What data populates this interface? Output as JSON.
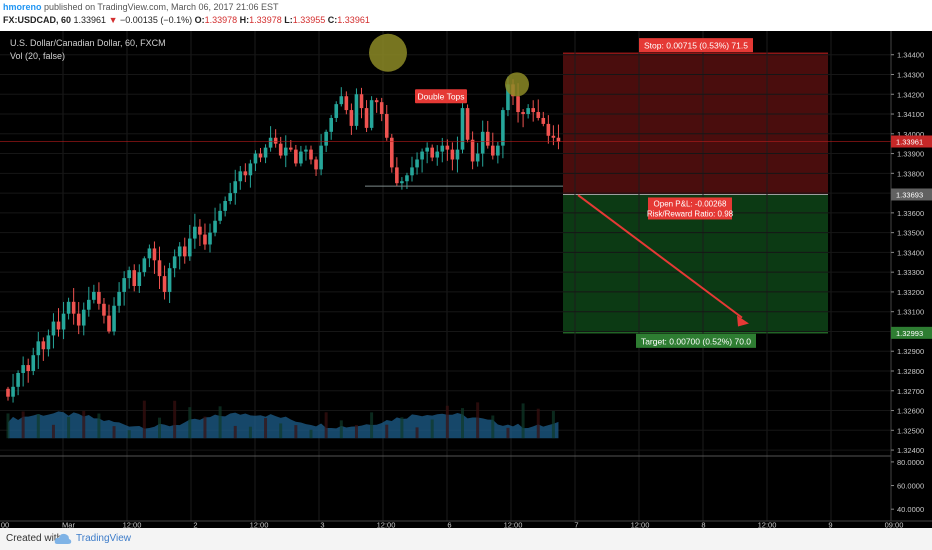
{
  "header": {
    "publisher": "hmoreno",
    "published_text": "published on TradingView.com, March 06, 2017 21:06 EST",
    "symbol": "FX:USDCAD, 60",
    "last": "1.33961",
    "change": "−0.00135 (−0.1%)",
    "o_label": "O:",
    "o_value": "1.33978",
    "h_label": "H:",
    "h_value": "1.33978",
    "l_label": "L:",
    "l_value": "1.33955",
    "c_label": "C:",
    "c_value": "1.33961"
  },
  "legend": {
    "instrument": "U.S. Dollar/Canadian Dollar, 60, FXCM",
    "volume": "Vol (20, false)"
  },
  "annotations": {
    "double_tops": "Double Tops",
    "stop_label": "Stop: 0.00715 (0.53%) 71.5",
    "open_pl": "Open P&L: -0.00268",
    "risk_reward": "Risk/Reward Ratio: 0.98",
    "target_label": "Target: 0.00700 (0.52%) 70.0"
  },
  "price_badges": {
    "current": "1.33961",
    "entry": "1.33693",
    "target": "1.32993"
  },
  "footer": {
    "created_with": "Created with",
    "brand": "TradingView"
  },
  "colors": {
    "background": "#000000",
    "up_candle": "#26a69a",
    "down_candle": "#ef5350",
    "stop_zone": "#4a0d0d",
    "target_zone": "#0c3a14",
    "arrow": "#e53935",
    "volume_area": "#1e5f8c",
    "circle_highlight": "#8c8a26"
  },
  "chart_data": {
    "type": "candlestick",
    "price_axis": {
      "ylim": [
        1.3237,
        1.3452
      ],
      "ticks": [
        "1.34400",
        "1.34300",
        "1.34200",
        "1.34100",
        "1.34000",
        "1.33900",
        "1.33800",
        "1.33700",
        "1.33600",
        "1.33500",
        "1.33400",
        "1.33300",
        "1.33200",
        "1.33100",
        "1.33000",
        "1.32900",
        "1.32800",
        "1.32700",
        "1.32600",
        "1.32500",
        "1.32400"
      ]
    },
    "volume_axis": {
      "ticks": [
        "80.0000",
        "60.0000",
        "40.0000"
      ],
      "ylim": [
        30,
        85
      ]
    },
    "time_axis": {
      "labels": [
        "00",
        "Mar",
        "12:00",
        "2",
        "12:00",
        "3",
        "12:00",
        "6",
        "12:00",
        "7",
        "12:00",
        "8",
        "12:00",
        "9",
        "09:00"
      ]
    },
    "candles_close": [
      1.3267,
      1.3272,
      1.3279,
      1.3283,
      1.328,
      1.3288,
      1.3295,
      1.3291,
      1.3298,
      1.3305,
      1.3301,
      1.3309,
      1.3315,
      1.3309,
      1.3303,
      1.3311,
      1.3316,
      1.332,
      1.3314,
      1.3308,
      1.33,
      1.3313,
      1.332,
      1.3327,
      1.3331,
      1.3323,
      1.333,
      1.3337,
      1.3342,
      1.3336,
      1.3328,
      1.332,
      1.3332,
      1.3338,
      1.3343,
      1.3338,
      1.3347,
      1.3353,
      1.3349,
      1.3344,
      1.335,
      1.3356,
      1.3361,
      1.3366,
      1.337,
      1.3376,
      1.3381,
      1.3379,
      1.3385,
      1.339,
      1.3388,
      1.3393,
      1.3398,
      1.3395,
      1.3389,
      1.3393,
      1.3392,
      1.3385,
      1.3391,
      1.3392,
      1.3387,
      1.3382,
      1.3394,
      1.3401,
      1.3408,
      1.3415,
      1.3419,
      1.3412,
      1.3404,
      1.342,
      1.3413,
      1.3403,
      1.3417,
      1.3416,
      1.341,
      1.3398,
      1.3383,
      1.3375,
      1.3376,
      1.3379,
      1.3383,
      1.3387,
      1.3391,
      1.3393,
      1.3388,
      1.3391,
      1.3394,
      1.3392,
      1.3387,
      1.3392,
      1.3413,
      1.3397,
      1.3386,
      1.339,
      1.3401,
      1.3394,
      1.3389,
      1.3394,
      1.3412,
      1.3425,
      1.3419,
      1.3411,
      1.341,
      1.3413,
      1.3411,
      1.3408,
      1.3405,
      1.3399,
      1.3398,
      1.3396
    ],
    "stop_price": 1.34408,
    "entry_price": 1.33693,
    "target_price": 1.32993,
    "current_price": 1.33961,
    "neckline_price": 1.33735
  }
}
